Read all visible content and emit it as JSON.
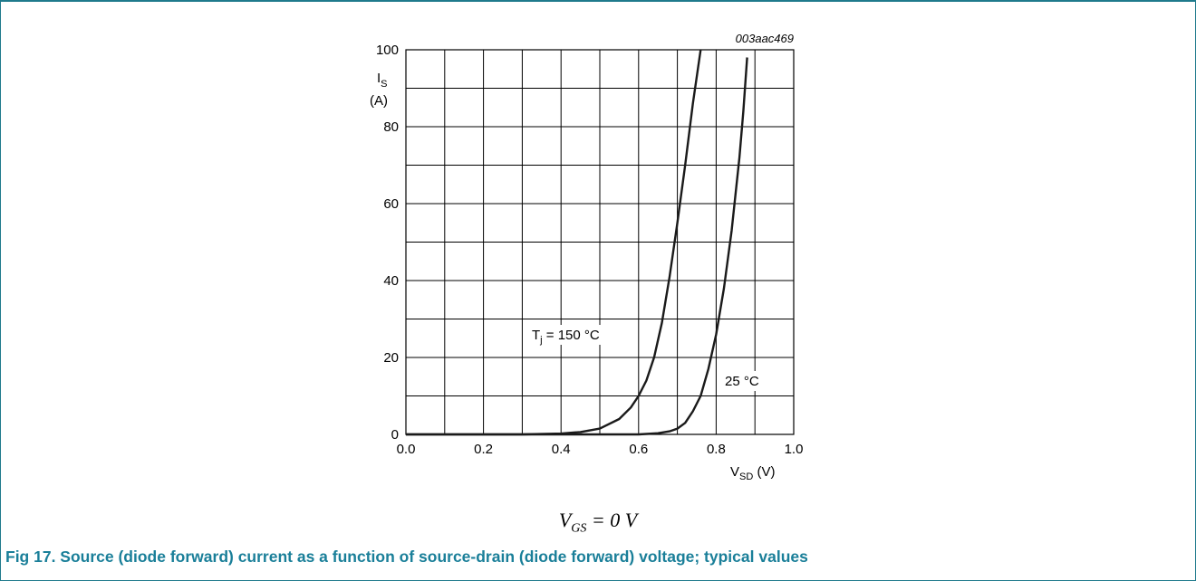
{
  "figure_id": "003aac469",
  "condition": {
    "var": "V",
    "sub": "GS",
    "rest": " = 0 V"
  },
  "caption": "Fig 17.  Source (diode forward) current as a function of source-drain (diode forward) voltage; typical values",
  "colors": {
    "caption": "#1a7f99",
    "frame": "#1f7a8c",
    "curve": "#1a1a1a",
    "grid": "#000000"
  },
  "chart_data": {
    "type": "line",
    "title": "",
    "xlabel": "V",
    "xlabel_sub": "SD",
    "xlabel_unit": " (V)",
    "ylabel": "I",
    "ylabel_sub": "S",
    "ylabel_unit": "(A)",
    "xlim": [
      0.0,
      1.0
    ],
    "ylim": [
      0,
      100
    ],
    "x_ticks": [
      "0.0",
      "0.2",
      "0.4",
      "0.6",
      "0.8",
      "1.0"
    ],
    "y_ticks": [
      "0",
      "20",
      "40",
      "60",
      "80",
      "100"
    ],
    "x_tick_values": [
      0.0,
      0.2,
      0.4,
      0.6,
      0.8,
      1.0
    ],
    "y_tick_values": [
      0,
      20,
      40,
      60,
      80,
      100
    ],
    "grid": true,
    "series": [
      {
        "name": "Tj = 150 °C",
        "label_main": "T",
        "label_sub": "j",
        "label_rest": " = 150 °C",
        "x": [
          0.0,
          0.3,
          0.4,
          0.45,
          0.5,
          0.55,
          0.58,
          0.6,
          0.62,
          0.64,
          0.66,
          0.68,
          0.7,
          0.72,
          0.74,
          0.76
        ],
        "y": [
          0,
          0,
          0.2,
          0.6,
          1.5,
          4,
          7,
          10,
          14,
          20,
          29,
          41,
          55,
          70,
          86,
          100
        ]
      },
      {
        "name": "25 °C",
        "label_main": "25 °C",
        "label_sub": "",
        "label_rest": "",
        "x": [
          0.0,
          0.6,
          0.65,
          0.68,
          0.7,
          0.72,
          0.74,
          0.76,
          0.78,
          0.8,
          0.82,
          0.84,
          0.86,
          0.87,
          0.88
        ],
        "y": [
          0,
          0,
          0.3,
          0.8,
          1.5,
          3,
          6,
          10,
          17,
          26,
          38,
          53,
          72,
          84,
          98
        ]
      }
    ]
  }
}
